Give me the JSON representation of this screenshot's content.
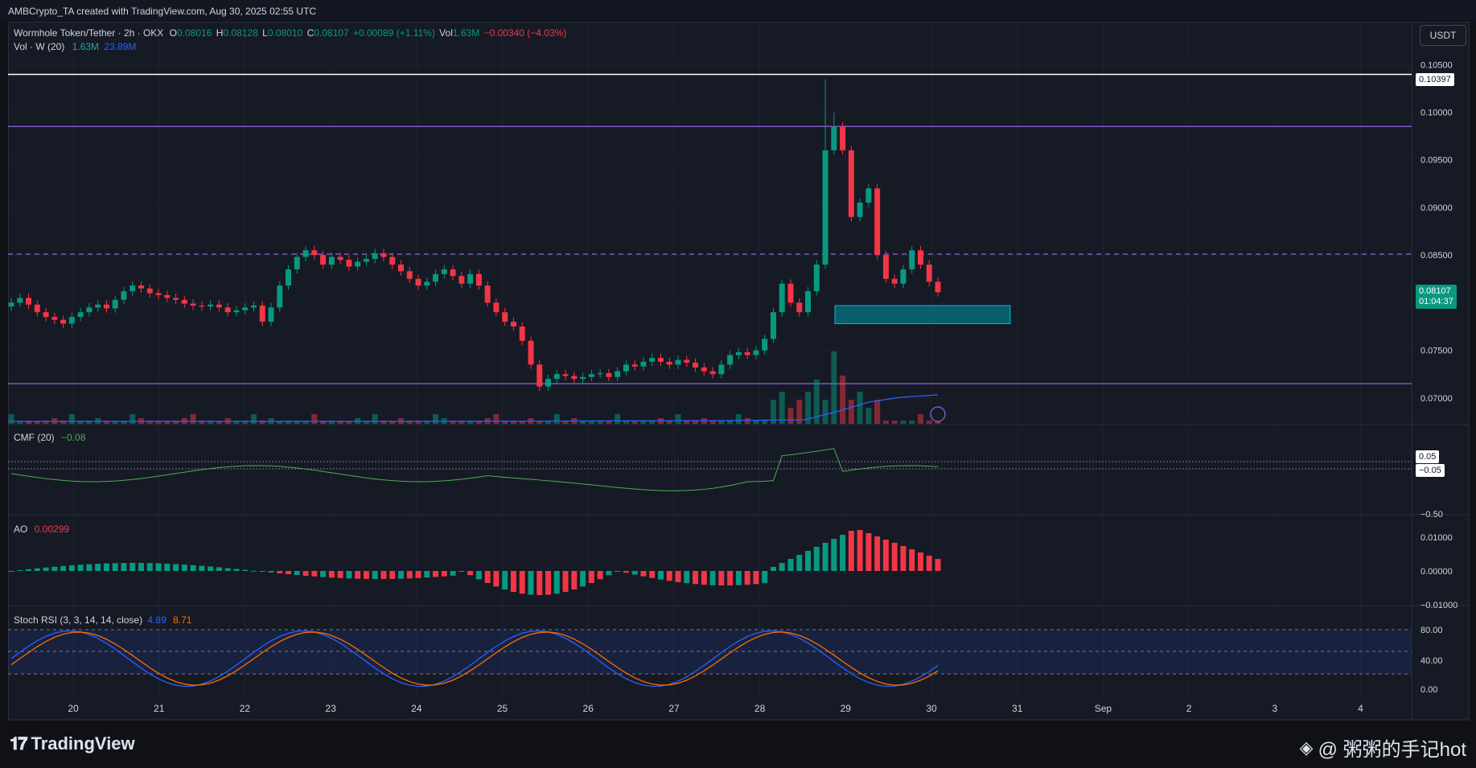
{
  "topbar": {
    "text": "AMBCrypto_TA created with TradingView.com, Aug 30, 2025 02:55 UTC"
  },
  "legend": {
    "symbol": "Wormhole Token/Tether · 2h · OKX",
    "o_label": "O",
    "o": "0.08016",
    "h_label": "H",
    "h": "0.08128",
    "l_label": "L",
    "l": "0.08010",
    "c_label": "C",
    "c": "0.08107",
    "change": "+0.00089 (+1.11%)",
    "vol_label": "Vol",
    "vol": "1.63M",
    "vol_change": "−0.00340 (−4.03%)",
    "volw_label": "Vol · W (20)",
    "volw_1": "1.63M",
    "volw_2": "23.89M"
  },
  "currency_button": "USDT",
  "colors": {
    "up": "#089981",
    "down": "#f23645",
    "purple": "#7e57c2",
    "cmf": "#4caf50",
    "stoch_k": "#2962ff",
    "stoch_d": "#ff6d00",
    "white": "#ffffff"
  },
  "price_axis": {
    "ticks": [
      "0.10500",
      "0.10000",
      "0.09500",
      "0.09000",
      "0.08500",
      "0.08000",
      "0.07500",
      "0.07000"
    ],
    "tick_values": [
      0.105,
      0.1,
      0.095,
      0.09,
      0.085,
      0.08,
      0.075,
      0.07
    ],
    "white_line_label": "0.10397",
    "last_price": "0.08107",
    "countdown": "01:04:37"
  },
  "levels": {
    "white": 0.10397,
    "purple_top": 0.0985,
    "purple_dashed": 0.0851,
    "purple_bottom": 0.0715
  },
  "zone": {
    "top": 0.0797,
    "bottom": 0.0778
  },
  "cmf": {
    "label": "CMF (20)",
    "value": "−0.08",
    "ticks": [
      "0.05",
      "−0.05",
      "−0.50"
    ]
  },
  "ao": {
    "label": "AO",
    "value": "0.00299",
    "ticks": [
      "0.01000",
      "0.00000",
      "−0.01000"
    ]
  },
  "stoch": {
    "label": "Stoch RSI (3, 3, 14, 14, close)",
    "k": "4.89",
    "d": "8.71",
    "ticks": [
      "80.00",
      "40.00",
      "0.00"
    ]
  },
  "time_axis": [
    "20",
    "21",
    "22",
    "23",
    "24",
    "25",
    "26",
    "27",
    "28",
    "29",
    "30",
    "31",
    "Sep",
    "2",
    "3",
    "4"
  ],
  "footer": {
    "brand": "TradingView",
    "watermark": "@ 粥粥的手记hot"
  },
  "chart_data": {
    "type": "candlestick",
    "title": "Wormhole Token/Tether · 2h · OKX",
    "series": [
      {
        "name": "Price close (approx, 2h)",
        "values": [
          0.08,
          0.0805,
          0.0798,
          0.079,
          0.0785,
          0.0782,
          0.0778,
          0.0785,
          0.079,
          0.0795,
          0.0798,
          0.0794,
          0.0803,
          0.0812,
          0.0818,
          0.0815,
          0.081,
          0.0808,
          0.0805,
          0.0803,
          0.0799,
          0.0797,
          0.0796,
          0.0798,
          0.0795,
          0.079,
          0.0792,
          0.0795,
          0.0797,
          0.078,
          0.0795,
          0.0818,
          0.0835,
          0.0848,
          0.0855,
          0.085,
          0.084,
          0.0848,
          0.0845,
          0.0838,
          0.0843,
          0.0846,
          0.0852,
          0.0848,
          0.084,
          0.0833,
          0.0825,
          0.0818,
          0.0822,
          0.083,
          0.0835,
          0.0828,
          0.082,
          0.083,
          0.0818,
          0.08,
          0.079,
          0.078,
          0.0775,
          0.076,
          0.0735,
          0.0712,
          0.072,
          0.0725,
          0.0723,
          0.072,
          0.0722,
          0.0725,
          0.0726,
          0.0722,
          0.0728,
          0.0735,
          0.0733,
          0.0738,
          0.0742,
          0.0738,
          0.0735,
          0.074,
          0.0737,
          0.0732,
          0.0728,
          0.0725,
          0.0735,
          0.0745,
          0.0748,
          0.0745,
          0.075,
          0.0762,
          0.079,
          0.082,
          0.08,
          0.079,
          0.0812,
          0.084,
          0.096,
          0.0985,
          0.096,
          0.089,
          0.0905,
          0.092,
          0.085,
          0.0825,
          0.082,
          0.0835,
          0.0855,
          0.084,
          0.0822,
          0.0811
        ]
      }
    ],
    "ylim": [
      0.0672,
      0.1095
    ],
    "volume_avg": "23.89M"
  }
}
